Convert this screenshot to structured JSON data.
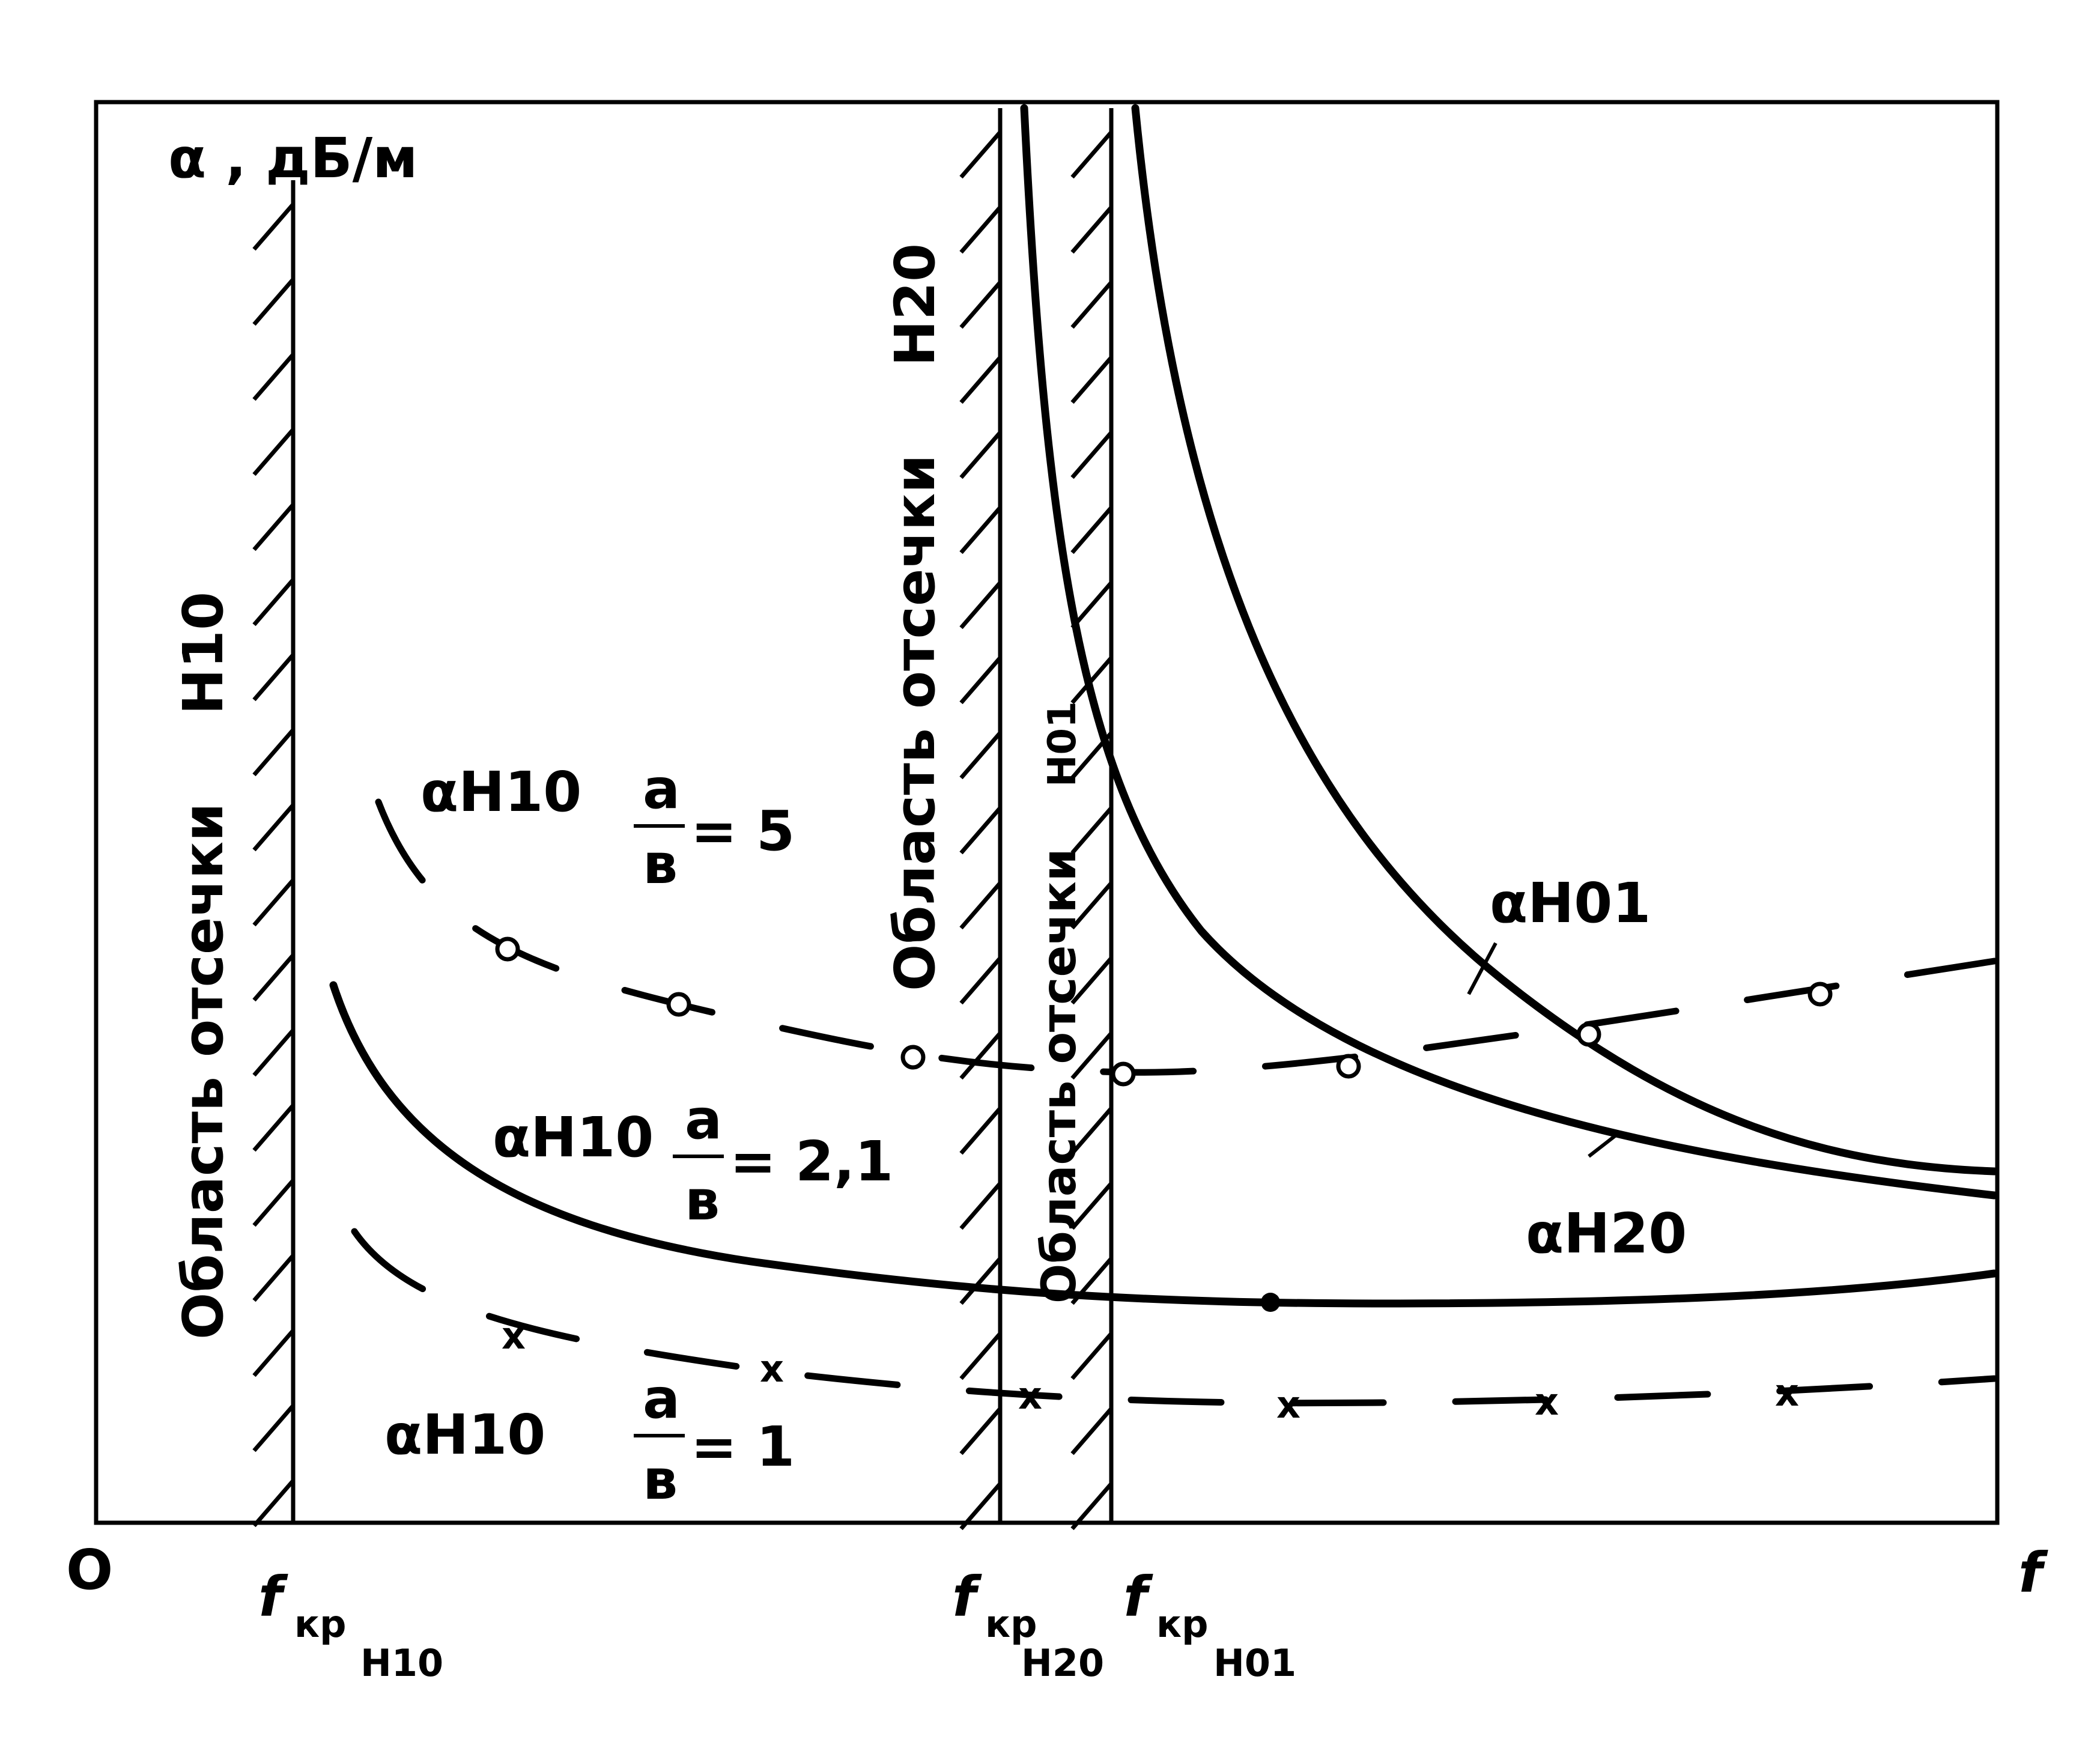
{
  "diagram": {
    "y_axis_label": "α , дБ/м",
    "x_axis_label": "f",
    "origin_label": "O",
    "cutoff_markers": [
      {
        "id": "h10",
        "main": "f",
        "sub1": "кр",
        "sub2": "H10"
      },
      {
        "id": "h20",
        "main": "f",
        "sub1": "кр",
        "sub2": "H20"
      },
      {
        "id": "h01",
        "main": "f",
        "sub1": "кр",
        "sub2": "H01"
      }
    ],
    "regions": [
      {
        "id": "region-h10",
        "text": "Область отсечки",
        "mode": "H10"
      },
      {
        "id": "region-h20",
        "text": "Область отсечки",
        "mode": "H20"
      },
      {
        "id": "region-h01",
        "text": "Область отсечки",
        "mode": "H01"
      }
    ],
    "curves": [
      {
        "id": "h10-ratio5",
        "label": "αH10",
        "ratio_num": "a",
        "ratio_den": "в",
        "ratio_value": "= 5",
        "marker": "o"
      },
      {
        "id": "h10-ratio2_1",
        "label": "αH10",
        "ratio_num": "a",
        "ratio_den": "в",
        "ratio_value": "= 2,1",
        "marker": "none"
      },
      {
        "id": "h10-ratio1",
        "label": "αH10",
        "ratio_num": "a",
        "ratio_den": "в",
        "ratio_value": "= 1",
        "marker": "x"
      },
      {
        "id": "h01",
        "label": "αH01"
      },
      {
        "id": "h20",
        "label": "αH20"
      }
    ],
    "x_mark": "x",
    "colors": {
      "ink": "#000000",
      "paper": "#ffffff"
    }
  }
}
